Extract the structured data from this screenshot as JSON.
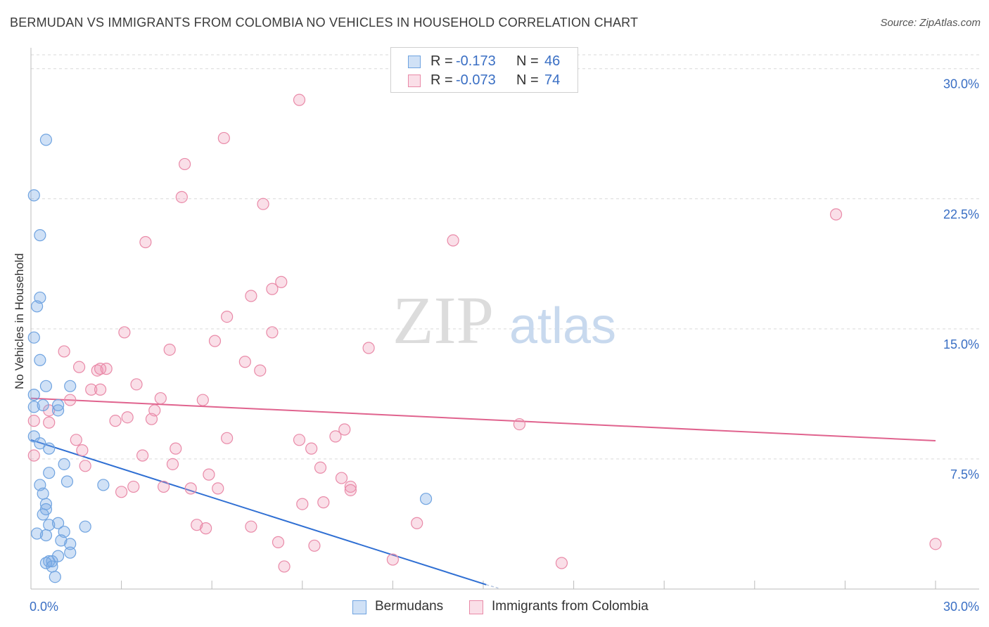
{
  "title": "BERMUDAN VS IMMIGRANTS FROM COLOMBIA NO VEHICLES IN HOUSEHOLD CORRELATION CHART",
  "source": "Source: ZipAtlas.com",
  "watermark": {
    "zip": "ZIP",
    "atlas": "atlas"
  },
  "legend": {
    "r_label": "R =",
    "n_label": "N =",
    "rows": [
      {
        "r": "-0.173",
        "n": "46"
      },
      {
        "r": "-0.073",
        "n": "74"
      }
    ]
  },
  "colors": {
    "blue": "#6fa3e0",
    "blue_fill": "rgba(120,168,230,0.35)",
    "blue_line": "#2f6fd3",
    "pink": "#e98aa8",
    "pink_fill": "rgba(240,150,180,0.30)",
    "pink_line": "#e0638e",
    "tick_text": "#3a6fc4"
  },
  "chart_data": {
    "type": "scatter",
    "xlabel": "",
    "ylabel": "No Vehicles in Household",
    "xlim": [
      0,
      30
    ],
    "ylim": [
      0,
      30.8
    ],
    "x_tick_labels": [
      {
        "value": 0,
        "label": "0.0%"
      },
      {
        "value": 30,
        "label": "30.0%"
      }
    ],
    "y_ticks": [
      {
        "value": 7.5,
        "label": "7.5%"
      },
      {
        "value": 15,
        "label": "15.0%"
      },
      {
        "value": 22.5,
        "label": "22.5%"
      },
      {
        "value": 30,
        "label": "30.0%"
      }
    ],
    "x_minor_ticks": [
      0,
      3,
      6,
      9,
      12,
      15,
      18,
      21,
      24,
      27,
      30
    ],
    "series": [
      {
        "name": "Bermudans",
        "color_key": "blue",
        "points": [
          [
            0.5,
            25.9
          ],
          [
            0.1,
            22.7
          ],
          [
            0.3,
            20.4
          ],
          [
            0.3,
            16.8
          ],
          [
            0.2,
            16.3
          ],
          [
            0.1,
            14.5
          ],
          [
            0.3,
            13.2
          ],
          [
            0.1,
            11.2
          ],
          [
            0.5,
            11.7
          ],
          [
            1.3,
            11.7
          ],
          [
            0.1,
            10.5
          ],
          [
            0.4,
            10.6
          ],
          [
            0.9,
            10.3
          ],
          [
            0.9,
            10.6
          ],
          [
            0.1,
            8.8
          ],
          [
            0.3,
            8.4
          ],
          [
            0.6,
            8.1
          ],
          [
            1.1,
            7.2
          ],
          [
            0.6,
            6.7
          ],
          [
            1.2,
            6.2
          ],
          [
            0.3,
            6.0
          ],
          [
            2.4,
            6.0
          ],
          [
            0.4,
            5.5
          ],
          [
            0.5,
            4.9
          ],
          [
            0.5,
            4.6
          ],
          [
            0.4,
            4.3
          ],
          [
            0.6,
            3.7
          ],
          [
            0.9,
            3.8
          ],
          [
            1.8,
            3.6
          ],
          [
            0.2,
            3.2
          ],
          [
            0.5,
            3.1
          ],
          [
            1.1,
            3.3
          ],
          [
            1.0,
            2.8
          ],
          [
            1.3,
            2.6
          ],
          [
            1.3,
            2.1
          ],
          [
            0.9,
            1.9
          ],
          [
            0.6,
            1.6
          ],
          [
            0.7,
            1.6
          ],
          [
            0.5,
            1.5
          ],
          [
            0.7,
            1.3
          ],
          [
            0.8,
            0.7
          ],
          [
            13.1,
            5.2
          ]
        ],
        "trend": {
          "x1": 0,
          "y1": 8.6,
          "x2": 15.1,
          "y2": 0.25,
          "dash_to_x": 15.5,
          "dash_to_y": 0.05
        }
      },
      {
        "name": "Immigrants from Colombia",
        "color_key": "pink",
        "points": [
          [
            8.9,
            28.2
          ],
          [
            6.4,
            26.0
          ],
          [
            5.1,
            24.5
          ],
          [
            5.0,
            22.6
          ],
          [
            7.7,
            22.2
          ],
          [
            26.7,
            21.6
          ],
          [
            3.8,
            20.0
          ],
          [
            14.0,
            20.1
          ],
          [
            8.3,
            17.7
          ],
          [
            8.0,
            17.3
          ],
          [
            7.3,
            16.9
          ],
          [
            6.5,
            15.7
          ],
          [
            3.1,
            14.8
          ],
          [
            8.0,
            14.8
          ],
          [
            6.1,
            14.3
          ],
          [
            11.2,
            13.9
          ],
          [
            4.6,
            13.8
          ],
          [
            1.1,
            13.7
          ],
          [
            7.1,
            13.1
          ],
          [
            1.6,
            12.8
          ],
          [
            2.2,
            12.6
          ],
          [
            2.5,
            12.7
          ],
          [
            2.3,
            12.7
          ],
          [
            7.6,
            12.6
          ],
          [
            3.5,
            11.8
          ],
          [
            2.0,
            11.5
          ],
          [
            2.3,
            11.5
          ],
          [
            4.3,
            11.0
          ],
          [
            5.7,
            10.9
          ],
          [
            1.3,
            10.9
          ],
          [
            4.1,
            10.3
          ],
          [
            0.6,
            10.3
          ],
          [
            3.2,
            9.9
          ],
          [
            2.8,
            9.7
          ],
          [
            0.1,
            9.7
          ],
          [
            4.0,
            9.8
          ],
          [
            0.6,
            9.6
          ],
          [
            10.4,
            9.2
          ],
          [
            16.2,
            9.5
          ],
          [
            10.1,
            8.8
          ],
          [
            6.5,
            8.7
          ],
          [
            8.9,
            8.6
          ],
          [
            1.5,
            8.6
          ],
          [
            1.7,
            8.0
          ],
          [
            4.8,
            8.1
          ],
          [
            9.3,
            8.1
          ],
          [
            3.7,
            7.7
          ],
          [
            0.1,
            7.7
          ],
          [
            4.7,
            7.2
          ],
          [
            1.8,
            7.1
          ],
          [
            9.6,
            7.0
          ],
          [
            5.9,
            6.6
          ],
          [
            10.3,
            6.4
          ],
          [
            10.6,
            5.9
          ],
          [
            3.4,
            5.9
          ],
          [
            4.4,
            5.9
          ],
          [
            5.3,
            5.8
          ],
          [
            6.2,
            5.8
          ],
          [
            10.6,
            5.7
          ],
          [
            3.0,
            5.6
          ],
          [
            9.0,
            4.9
          ],
          [
            9.7,
            5.0
          ],
          [
            5.5,
            3.7
          ],
          [
            5.8,
            3.5
          ],
          [
            7.3,
            3.6
          ],
          [
            12.8,
            3.8
          ],
          [
            8.2,
            2.7
          ],
          [
            9.4,
            2.5
          ],
          [
            30.0,
            2.6
          ],
          [
            12.0,
            1.7
          ],
          [
            8.4,
            1.3
          ],
          [
            17.6,
            1.5
          ]
        ],
        "trend": {
          "x1": 0,
          "y1": 11.0,
          "x2": 30,
          "y2": 8.55
        }
      }
    ]
  }
}
